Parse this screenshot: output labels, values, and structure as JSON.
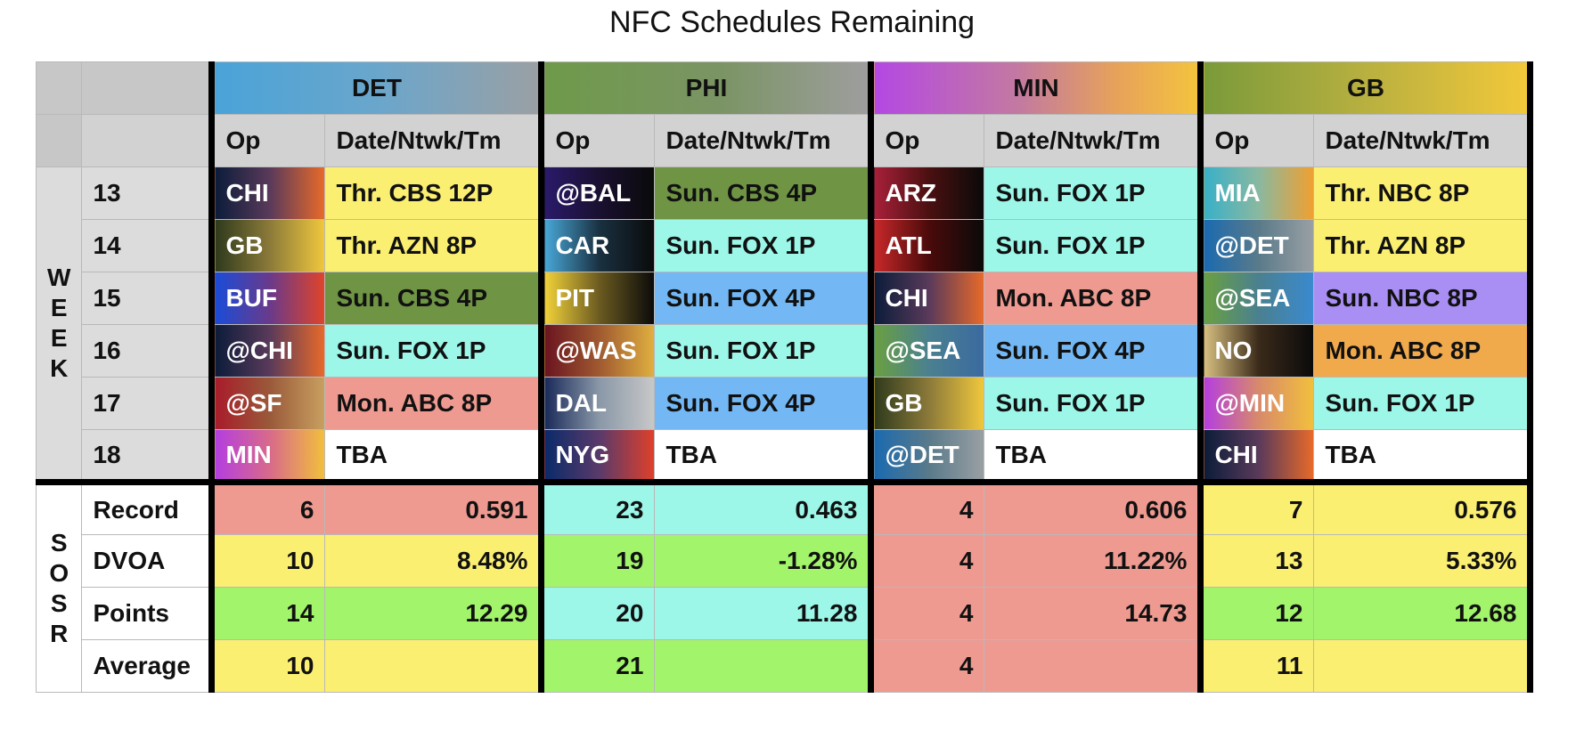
{
  "title": "NFC Schedules Remaining",
  "colors": {
    "yellow": "#fbef71",
    "teal": "#9cf7e9",
    "blue": "#73b8f4",
    "green": "#6e9444",
    "salmon": "#ee9a91",
    "purple": "#a98ff4",
    "orange": "#f0a94b",
    "white": "#ffffff",
    "lime": "#a2f46a"
  },
  "teams": [
    "DET",
    "PHI",
    "MIN",
    "GB"
  ],
  "sub_headers": {
    "op": "Op",
    "date": "Date/Ntwk/Tm"
  },
  "week_label": "WEEK",
  "sosr_label": "SOSR",
  "weeks": [
    "13",
    "14",
    "15",
    "16",
    "17",
    "18"
  ],
  "schedules": {
    "DET": [
      {
        "op": "CHI",
        "slot": "Thr. CBS 12P"
      },
      {
        "op": "GB",
        "slot": "Thr. AZN 8P"
      },
      {
        "op": "BUF",
        "slot": "Sun. CBS 4P"
      },
      {
        "op": "@CHI",
        "slot": "Sun. FOX 1P"
      },
      {
        "op": "@SF",
        "slot": "Mon. ABC 8P"
      },
      {
        "op": "MIN",
        "slot": "TBA"
      }
    ],
    "PHI": [
      {
        "op": "@BAL",
        "slot": "Sun. CBS 4P"
      },
      {
        "op": "CAR",
        "slot": "Sun. FOX 1P"
      },
      {
        "op": "PIT",
        "slot": "Sun. FOX 4P"
      },
      {
        "op": "@WAS",
        "slot": "Sun. FOX 1P"
      },
      {
        "op": "DAL",
        "slot": "Sun. FOX 4P"
      },
      {
        "op": "NYG",
        "slot": "TBA"
      }
    ],
    "MIN": [
      {
        "op": "ARZ",
        "slot": "Sun. FOX 1P"
      },
      {
        "op": "ATL",
        "slot": "Sun. FOX 1P"
      },
      {
        "op": "CHI",
        "slot": "Mon. ABC 8P"
      },
      {
        "op": "@SEA",
        "slot": "Sun. FOX 4P"
      },
      {
        "op": "GB",
        "slot": "Sun. FOX 1P"
      },
      {
        "op": "@DET",
        "slot": "TBA"
      }
    ],
    "GB": [
      {
        "op": "MIA",
        "slot": "Thr. NBC 8P"
      },
      {
        "op": "@DET",
        "slot": "Thr. AZN 8P"
      },
      {
        "op": "@SEA",
        "slot": "Sun. NBC 8P"
      },
      {
        "op": "NO",
        "slot": "Mon. ABC 8P"
      },
      {
        "op": "@MIN",
        "slot": "Sun. FOX 1P"
      },
      {
        "op": "CHI",
        "slot": "TBA"
      }
    ]
  },
  "sosr": [
    {
      "label": "Record",
      "DET": {
        "rank": "6",
        "value": "0.591"
      },
      "PHI": {
        "rank": "23",
        "value": "0.463"
      },
      "MIN": {
        "rank": "4",
        "value": "0.606"
      },
      "GB": {
        "rank": "7",
        "value": "0.576"
      }
    },
    {
      "label": "DVOA",
      "DET": {
        "rank": "10",
        "value": "8.48%"
      },
      "PHI": {
        "rank": "19",
        "value": "-1.28%"
      },
      "MIN": {
        "rank": "4",
        "value": "11.22%"
      },
      "GB": {
        "rank": "13",
        "value": "5.33%"
      }
    },
    {
      "label": "Points",
      "DET": {
        "rank": "14",
        "value": "12.29"
      },
      "PHI": {
        "rank": "20",
        "value": "11.28"
      },
      "MIN": {
        "rank": "4",
        "value": "14.73"
      },
      "GB": {
        "rank": "12",
        "value": "12.68"
      }
    },
    {
      "label": "Average",
      "DET": {
        "rank": "10",
        "value": ""
      },
      "PHI": {
        "rank": "21",
        "value": ""
      },
      "MIN": {
        "rank": "4",
        "value": ""
      },
      "GB": {
        "rank": "11",
        "value": ""
      }
    }
  ],
  "chart_data": {
    "type": "table",
    "title": "NFC Schedules Remaining",
    "columns": [
      "DET",
      "PHI",
      "MIN",
      "GB"
    ],
    "weeks": [
      13,
      14,
      15,
      16,
      17,
      18
    ],
    "sosr_metrics": [
      "Record",
      "DVOA",
      "Points",
      "Average"
    ],
    "sosr_ranks": {
      "DET": [
        6,
        10,
        14,
        10
      ],
      "PHI": [
        23,
        19,
        20,
        21
      ],
      "MIN": [
        4,
        4,
        4,
        4
      ],
      "GB": [
        7,
        13,
        12,
        11
      ]
    },
    "sosr_values": {
      "DET": [
        "0.591",
        "8.48%",
        "12.29",
        ""
      ],
      "PHI": [
        "0.463",
        "-1.28%",
        "11.28",
        ""
      ],
      "MIN": [
        "0.606",
        "11.22%",
        "14.73",
        ""
      ],
      "GB": [
        "0.576",
        "5.33%",
        "12.68",
        ""
      ]
    }
  }
}
